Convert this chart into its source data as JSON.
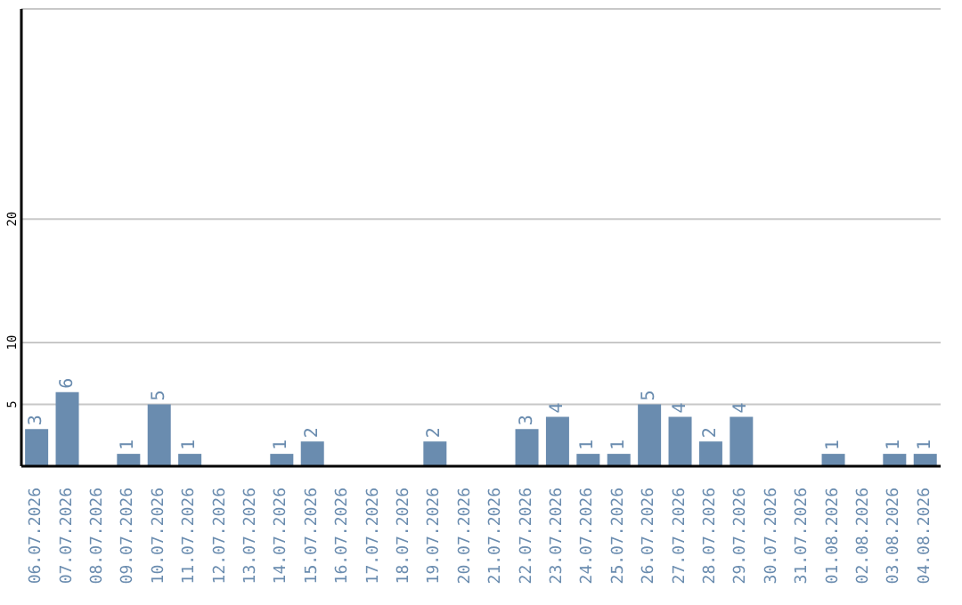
{
  "chart_data": {
    "type": "bar",
    "categories": [
      "06.07.2026",
      "07.07.2026",
      "08.07.2026",
      "09.07.2026",
      "10.07.2026",
      "11.07.2026",
      "12.07.2026",
      "13.07.2026",
      "14.07.2026",
      "15.07.2026",
      "16.07.2026",
      "17.07.2026",
      "18.07.2026",
      "19.07.2026",
      "20.07.2026",
      "21.07.2026",
      "22.07.2026",
      "23.07.2026",
      "24.07.2026",
      "25.07.2026",
      "26.07.2026",
      "27.07.2026",
      "28.07.2026",
      "29.07.2026",
      "30.07.2026",
      "31.07.2026",
      "01.08.2026",
      "02.08.2026",
      "03.08.2026",
      "04.08.2026"
    ],
    "values": [
      3,
      6,
      0,
      1,
      5,
      1,
      0,
      0,
      1,
      2,
      0,
      0,
      0,
      2,
      0,
      0,
      3,
      4,
      1,
      1,
      5,
      4,
      2,
      4,
      0,
      0,
      1,
      0,
      1,
      1
    ],
    "value_labels": [
      "3",
      "6",
      null,
      "1",
      "5",
      "1",
      null,
      null,
      "1",
      "2",
      null,
      null,
      null,
      "2",
      null,
      null,
      "3",
      "4",
      "1",
      "1",
      "5",
      "4",
      "2",
      "4",
      null,
      null,
      "1",
      null,
      "1",
      "1"
    ],
    "color": "#6a8caf",
    "ylim": [
      0,
      37
    ],
    "yticks": [
      5,
      10,
      20
    ],
    "grid": "y"
  }
}
